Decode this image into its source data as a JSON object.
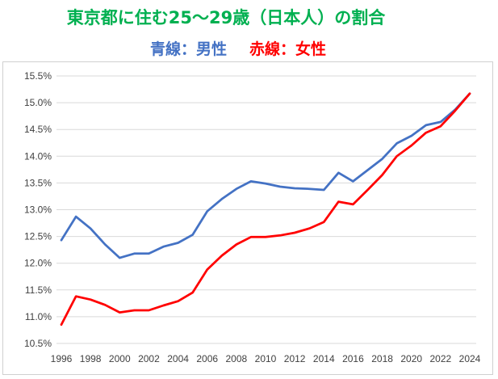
{
  "chart_data": {
    "type": "line",
    "title": "東京都に住む25～29歳（日本人）の割合",
    "subtitle_male": "青線：男性",
    "subtitle_female": "赤線：女性",
    "xlabel": "",
    "ylabel": "",
    "x": [
      1996,
      1997,
      1998,
      1999,
      2000,
      2001,
      2002,
      2003,
      2004,
      2005,
      2006,
      2007,
      2008,
      2009,
      2010,
      2011,
      2012,
      2013,
      2014,
      2015,
      2016,
      2017,
      2018,
      2019,
      2020,
      2021,
      2022,
      2023,
      2024
    ],
    "x_tick_labels": [
      "1996",
      "1998",
      "2000",
      "2002",
      "2004",
      "2006",
      "2008",
      "2010",
      "2012",
      "2014",
      "2016",
      "2018",
      "2020",
      "2022",
      "2024"
    ],
    "y_tick_labels": [
      "10.5%",
      "11.0%",
      "11.5%",
      "12.0%",
      "12.5%",
      "13.0%",
      "13.5%",
      "14.0%",
      "14.5%",
      "15.0%",
      "15.5%"
    ],
    "ylim": [
      10.5,
      15.5
    ],
    "grid": true,
    "legend": "none",
    "series": [
      {
        "name": "男性",
        "color": "#4472C4",
        "values": [
          12.43,
          12.87,
          12.65,
          12.35,
          12.1,
          12.18,
          12.18,
          12.31,
          12.38,
          12.53,
          12.97,
          13.2,
          13.39,
          13.53,
          13.49,
          13.43,
          13.4,
          13.39,
          13.37,
          13.69,
          13.53,
          13.74,
          13.95,
          14.24,
          14.38,
          14.58,
          14.64,
          14.87,
          15.17
        ]
      },
      {
        "name": "女性",
        "color": "#FF0000",
        "values": [
          10.85,
          11.38,
          11.32,
          11.22,
          11.08,
          11.12,
          11.12,
          11.21,
          11.29,
          11.45,
          11.88,
          12.14,
          12.35,
          12.49,
          12.49,
          12.52,
          12.57,
          12.65,
          12.77,
          13.15,
          13.1,
          13.37,
          13.65,
          14.0,
          14.2,
          14.44,
          14.56,
          14.85,
          15.17
        ]
      }
    ]
  }
}
